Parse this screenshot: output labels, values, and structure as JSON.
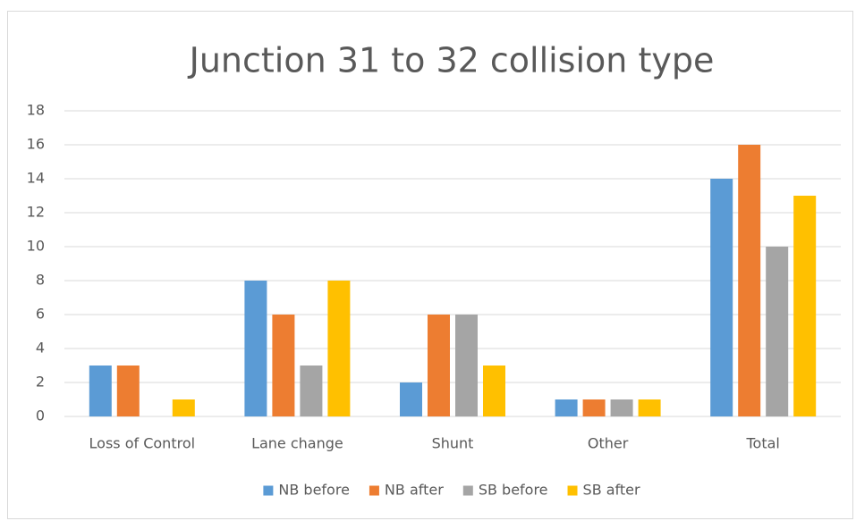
{
  "chart_data": {
    "type": "bar",
    "title": "Junction 31 to 32 collision type",
    "categories": [
      "Loss of Control",
      "Lane change",
      "Shunt",
      "Other",
      "Total"
    ],
    "series": [
      {
        "name": "NB before",
        "color": "#5b9bd5",
        "values": [
          3,
          8,
          2,
          1,
          14
        ]
      },
      {
        "name": "NB after",
        "color": "#ed7d31",
        "values": [
          3,
          6,
          6,
          1,
          16
        ]
      },
      {
        "name": "SB before",
        "color": "#a5a5a5",
        "values": [
          0,
          3,
          6,
          1,
          10
        ]
      },
      {
        "name": "SB after",
        "color": "#ffc000",
        "values": [
          1,
          8,
          3,
          1,
          13
        ]
      }
    ],
    "ylim": [
      0,
      18
    ],
    "yticks": [
      0,
      2,
      4,
      6,
      8,
      10,
      12,
      14,
      16,
      18
    ],
    "grid": true,
    "legend": "bottom"
  }
}
